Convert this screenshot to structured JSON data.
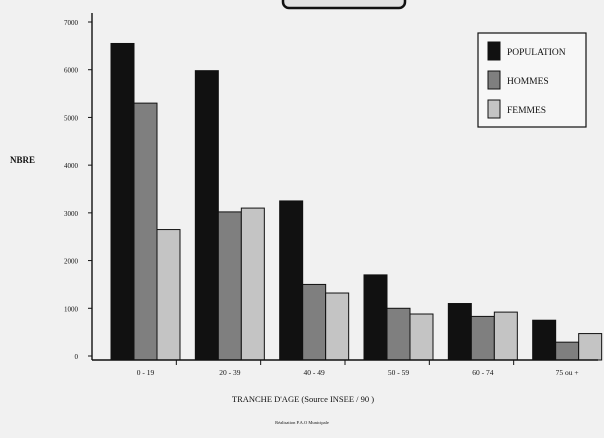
{
  "chart_data": {
    "type": "bar",
    "ylabel": "NBRE",
    "xlabel": "TRANCHE D'AGE (Source INSEE / 90 )",
    "footer": "Réalisation P.A.O Municipale",
    "categories": [
      "0 - 19",
      "20 - 39",
      "40 - 49",
      "50 - 59",
      "60 - 74",
      "75 ou +"
    ],
    "series": [
      {
        "name": "POPULATION",
        "color": "#111111",
        "values": [
          6550,
          5980,
          3250,
          1700,
          1100,
          750
        ]
      },
      {
        "name": "HOMMES",
        "color": "#7f7f7f",
        "values": [
          5300,
          3020,
          1500,
          1000,
          830,
          290
        ]
      },
      {
        "name": "FEMMES",
        "color": "#c4c4c4",
        "values": [
          2650,
          3100,
          1320,
          880,
          920,
          470
        ]
      }
    ],
    "yticks": [
      0,
      1000,
      2000,
      3000,
      4000,
      5000,
      6000,
      7000
    ],
    "ylim": [
      0,
      7000
    ],
    "legend_position": "top-right",
    "grid": false
  }
}
